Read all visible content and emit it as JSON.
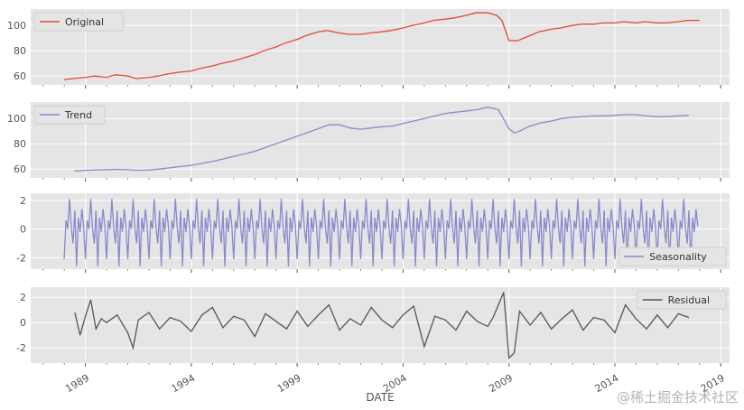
{
  "chart_data": [
    {
      "type": "line",
      "legend": {
        "label": "Original",
        "position": "top-left"
      },
      "color": "#e24a33",
      "ylim": [
        53,
        113
      ],
      "yticks": [
        60,
        80,
        100
      ],
      "grid": true,
      "x_range": [
        "1986-06",
        "2019-06"
      ],
      "x": [
        "1988-01",
        "1988-06",
        "1989-01",
        "1989-06",
        "1990-01",
        "1990-06",
        "1991-01",
        "1991-06",
        "1992-01",
        "1992-06",
        "1993-01",
        "1993-06",
        "1994-01",
        "1994-06",
        "1995-01",
        "1995-06",
        "1996-01",
        "1996-06",
        "1997-01",
        "1997-06",
        "1998-01",
        "1998-06",
        "1999-01",
        "1999-06",
        "2000-01",
        "2000-06",
        "2001-01",
        "2001-06",
        "2002-01",
        "2002-06",
        "2003-01",
        "2003-06",
        "2004-01",
        "2004-06",
        "2005-01",
        "2005-06",
        "2006-01",
        "2006-06",
        "2007-01",
        "2007-06",
        "2008-01",
        "2008-06",
        "2008-09",
        "2009-01",
        "2009-06",
        "2010-01",
        "2010-06",
        "2011-01",
        "2011-06",
        "2012-01",
        "2012-06",
        "2013-01",
        "2013-06",
        "2014-01",
        "2014-06",
        "2015-01",
        "2015-06",
        "2016-01",
        "2016-06",
        "2017-01",
        "2017-06",
        "2018-01"
      ],
      "values": [
        57,
        58,
        59,
        60,
        59,
        61,
        60,
        58,
        59,
        60,
        62,
        63,
        64,
        66,
        68,
        70,
        72,
        74,
        77,
        80,
        83,
        86,
        89,
        92,
        95,
        96,
        94,
        93,
        93,
        94,
        95,
        96,
        98,
        100,
        102,
        104,
        105,
        106,
        108,
        110,
        110,
        108,
        104,
        88,
        88,
        92,
        95,
        97,
        98,
        100,
        101,
        101,
        102,
        102,
        103,
        102,
        103,
        102,
        102,
        103,
        104,
        104
      ]
    },
    {
      "type": "line",
      "legend": {
        "label": "Trend",
        "position": "top-left"
      },
      "color": "#8988cc",
      "ylim": [
        53,
        113
      ],
      "yticks": [
        60,
        80,
        100
      ],
      "grid": true,
      "x_range": [
        "1986-06",
        "2019-06"
      ],
      "x": [
        "1988-07",
        "1989-01",
        "1989-07",
        "1990-01",
        "1990-07",
        "1991-01",
        "1991-07",
        "1992-01",
        "1992-07",
        "1993-01",
        "1993-07",
        "1994-01",
        "1994-07",
        "1995-01",
        "1995-07",
        "1996-01",
        "1996-07",
        "1997-01",
        "1997-07",
        "1998-01",
        "1998-07",
        "1999-01",
        "1999-07",
        "2000-01",
        "2000-07",
        "2001-01",
        "2001-07",
        "2002-01",
        "2002-07",
        "2003-01",
        "2003-07",
        "2004-01",
        "2004-07",
        "2005-01",
        "2005-07",
        "2006-01",
        "2006-07",
        "2007-01",
        "2007-07",
        "2008-01",
        "2008-07",
        "2009-01",
        "2009-04",
        "2009-07",
        "2010-01",
        "2010-07",
        "2011-01",
        "2011-07",
        "2012-01",
        "2012-07",
        "2013-01",
        "2013-07",
        "2014-01",
        "2014-07",
        "2015-01",
        "2015-07",
        "2016-01",
        "2016-07",
        "2017-01",
        "2017-07"
      ],
      "values": [
        58.5,
        59,
        59.3,
        59.5,
        59.8,
        59.5,
        59,
        59.3,
        60,
        61,
        62,
        63,
        64.5,
        66,
        68,
        70,
        72,
        74,
        77,
        80,
        83,
        86,
        89,
        92,
        95,
        95,
        92.5,
        91.5,
        92.5,
        93.5,
        94,
        96,
        98,
        100,
        102,
        104,
        105,
        106,
        107,
        109,
        107,
        92,
        88.5,
        90,
        94,
        96.5,
        98,
        100,
        101,
        101.5,
        102,
        102,
        102.5,
        103,
        103,
        102,
        101.5,
        101.5,
        102,
        102.5
      ]
    },
    {
      "type": "line",
      "legend": {
        "label": "Seasonality",
        "position": "bottom-right"
      },
      "color": "#8988cc",
      "ylim": [
        -2.8,
        2.5
      ],
      "yticks": [
        -2,
        0,
        2
      ],
      "grid": true,
      "x_range": [
        "1986-06",
        "2019-06"
      ],
      "x_start": "1988-01",
      "period_months": 12,
      "n_years": 30,
      "seasonal_pattern": [
        -2.1,
        0.6,
        0.0,
        2.1,
        0.1,
        -1.0,
        1.3,
        -2.6,
        0.8,
        -0.2,
        1.4,
        0.2
      ]
    },
    {
      "type": "line",
      "legend": {
        "label": "Residual",
        "position": "top-right"
      },
      "color": "#555555",
      "ylim": [
        -3.2,
        2.8
      ],
      "yticks": [
        -2,
        0,
        2
      ],
      "grid": true,
      "x_range": [
        "1986-06",
        "2019-06"
      ],
      "x": [
        "1988-07",
        "1988-10",
        "1989-01",
        "1989-04",
        "1989-07",
        "1989-10",
        "1990-01",
        "1990-07",
        "1991-01",
        "1991-04",
        "1991-07",
        "1992-01",
        "1992-07",
        "1993-01",
        "1993-07",
        "1994-01",
        "1994-07",
        "1995-01",
        "1995-07",
        "1996-01",
        "1996-07",
        "1997-01",
        "1997-07",
        "1998-01",
        "1998-07",
        "1999-01",
        "1999-07",
        "2000-01",
        "2000-07",
        "2001-01",
        "2001-07",
        "2002-01",
        "2002-07",
        "2003-01",
        "2003-07",
        "2004-01",
        "2004-07",
        "2005-01",
        "2005-07",
        "2006-01",
        "2006-07",
        "2007-01",
        "2007-07",
        "2008-01",
        "2008-04",
        "2008-07",
        "2008-10",
        "2009-01",
        "2009-04",
        "2009-07",
        "2010-01",
        "2010-07",
        "2011-01",
        "2011-07",
        "2012-01",
        "2012-07",
        "2013-01",
        "2013-07",
        "2014-01",
        "2014-07",
        "2015-01",
        "2015-07",
        "2016-01",
        "2016-07",
        "2017-01",
        "2017-07"
      ],
      "values": [
        0.8,
        -1.0,
        0.5,
        1.8,
        -0.5,
        0.3,
        0.0,
        0.6,
        -0.8,
        -2.0,
        0.2,
        0.8,
        -0.5,
        0.4,
        0.1,
        -0.7,
        0.6,
        1.2,
        -0.4,
        0.5,
        0.2,
        -1.1,
        0.7,
        0.1,
        -0.5,
        0.9,
        -0.3,
        0.6,
        1.4,
        -0.6,
        0.3,
        -0.2,
        1.2,
        0.2,
        -0.4,
        0.6,
        1.3,
        -1.9,
        0.5,
        0.2,
        -0.6,
        0.9,
        0.1,
        -0.3,
        0.4,
        1.4,
        2.4,
        -2.8,
        -2.4,
        0.9,
        -0.2,
        0.8,
        -0.5,
        0.3,
        1.0,
        -0.6,
        0.4,
        0.2,
        -0.8,
        1.4,
        0.3,
        -0.5,
        0.6,
        -0.4,
        0.7,
        0.4
      ]
    }
  ],
  "xaxis": {
    "label": "DATE",
    "ticks": [
      {
        "value": "1989-01",
        "label": "1989"
      },
      {
        "value": "1994-01",
        "label": "1994"
      },
      {
        "value": "1999-01",
        "label": "1999"
      },
      {
        "value": "2004-01",
        "label": "2004"
      },
      {
        "value": "2009-01",
        "label": "2009"
      },
      {
        "value": "2014-01",
        "label": "2014"
      },
      {
        "value": "2019-01",
        "label": "2019"
      }
    ]
  },
  "watermark": "@稀土掘金技术社区"
}
